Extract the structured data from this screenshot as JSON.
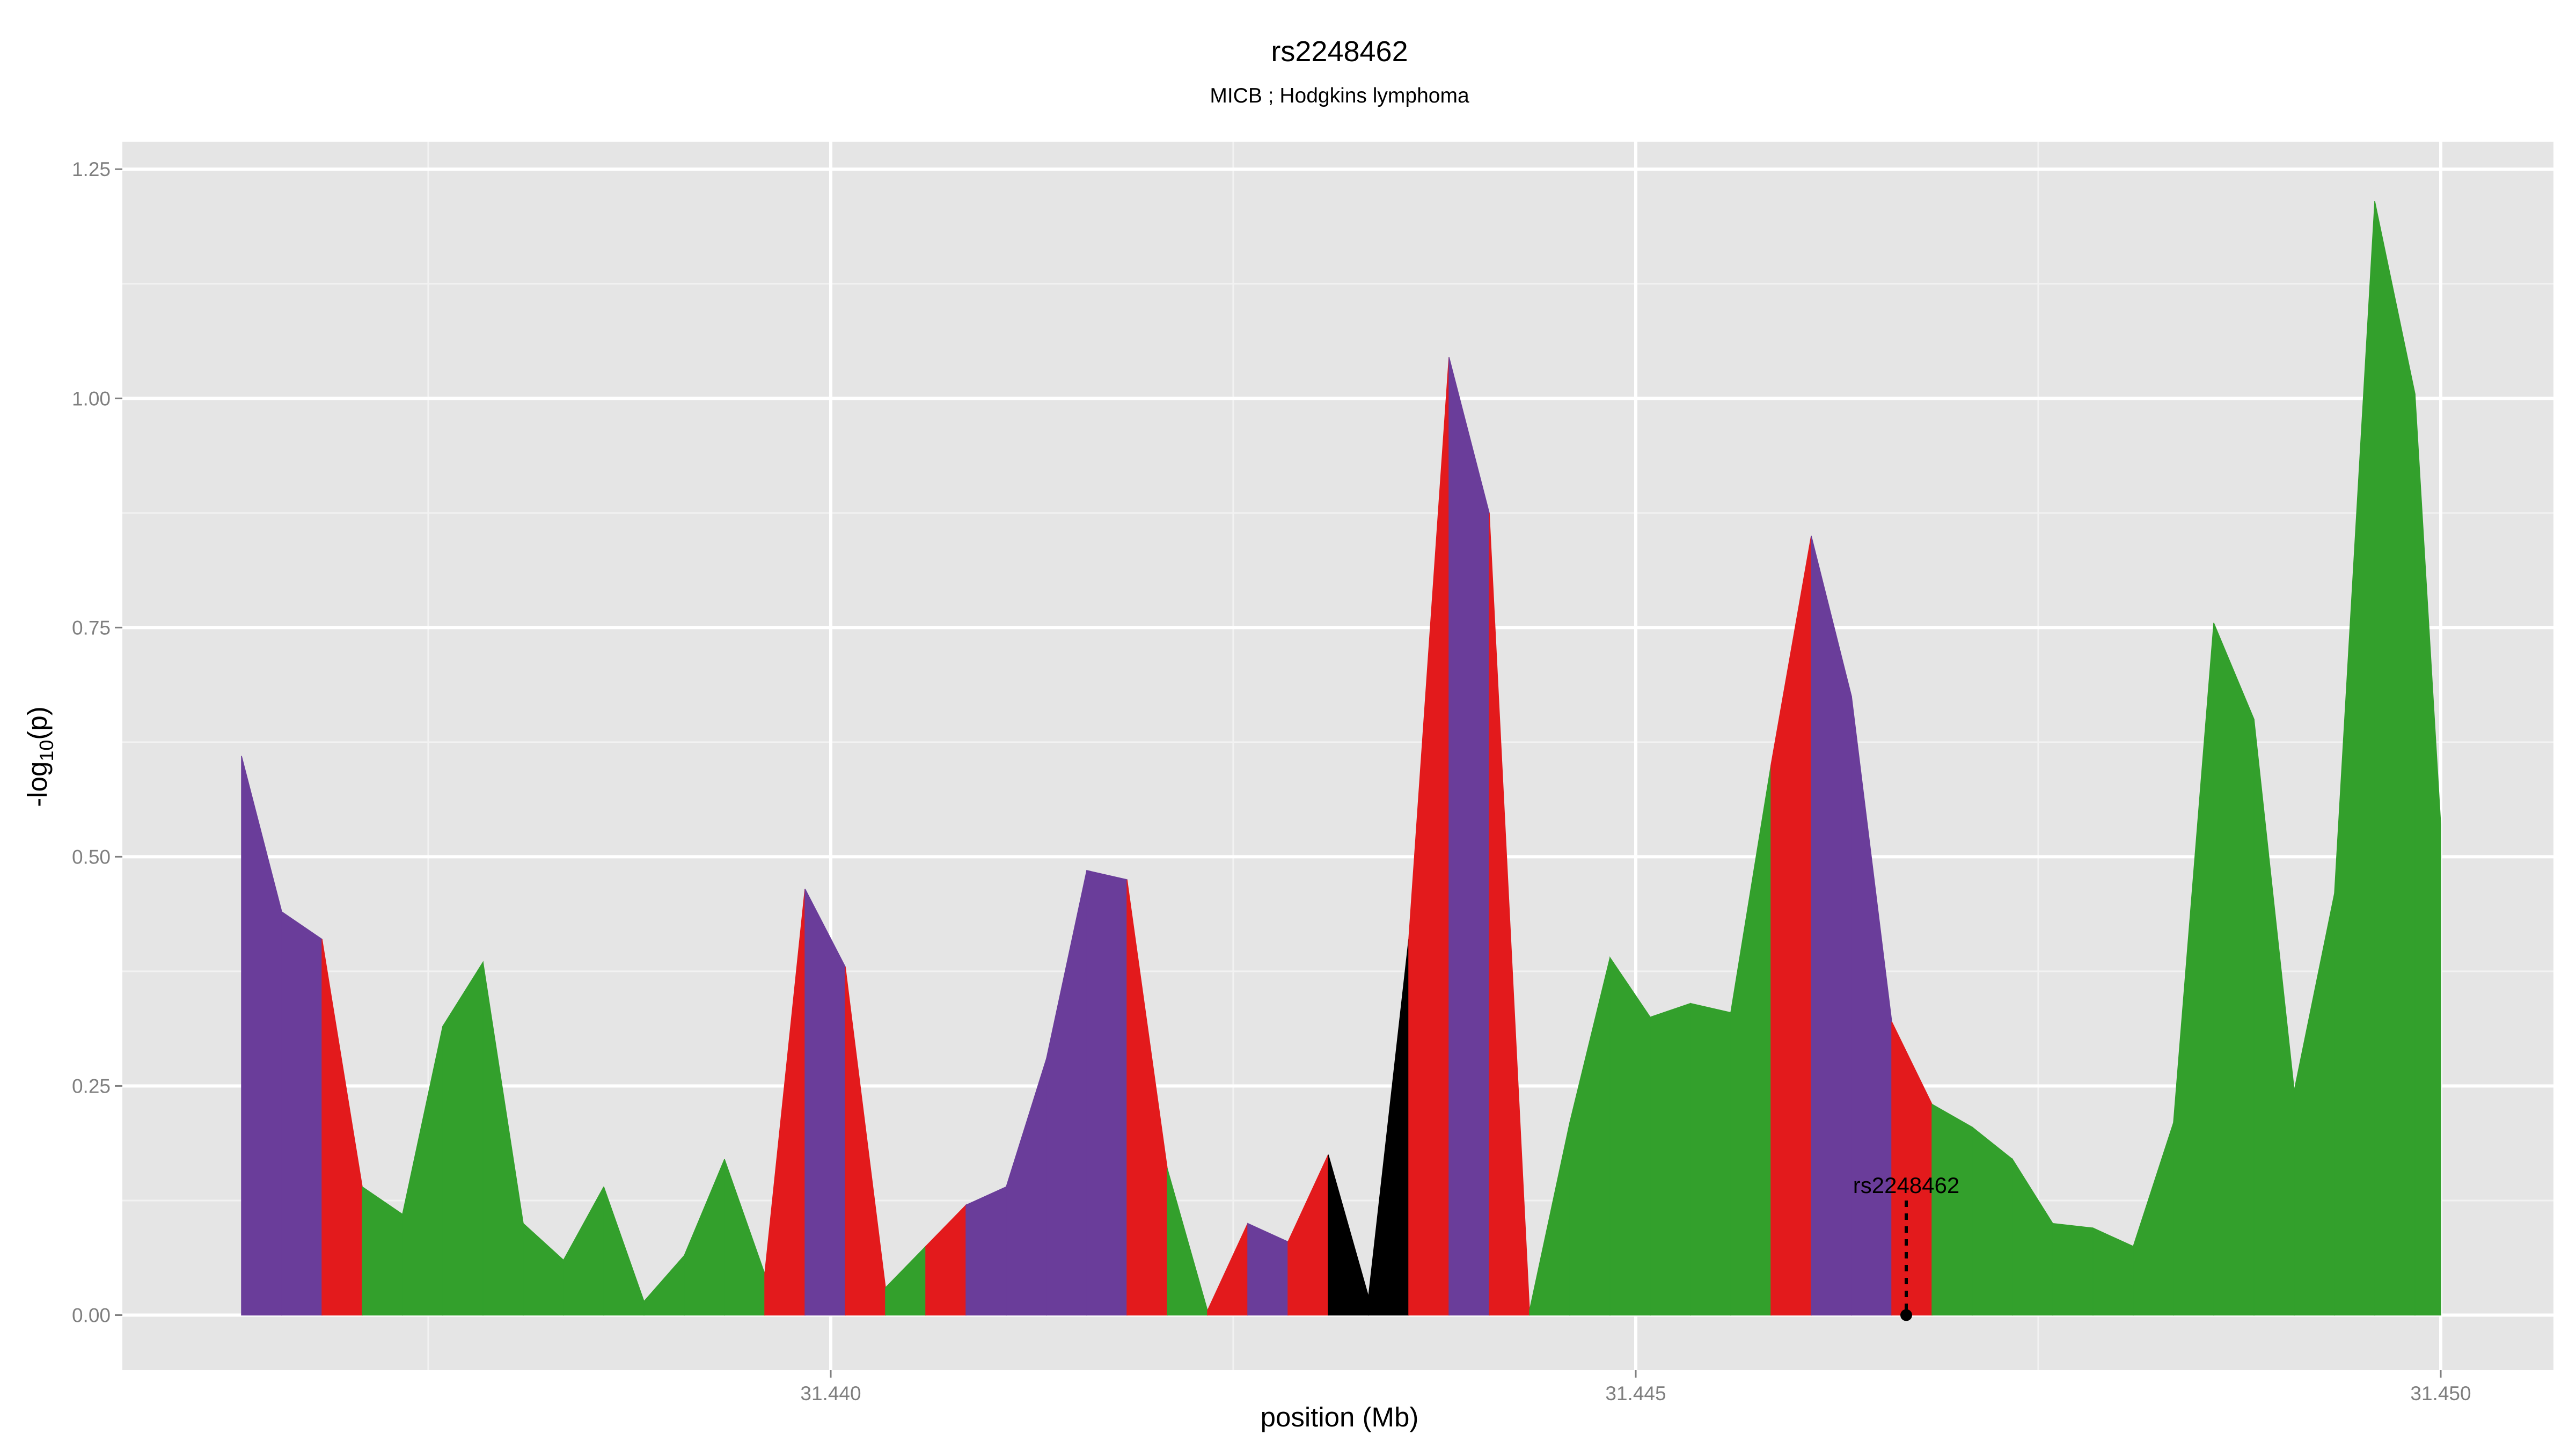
{
  "chart_data": {
    "type": "area",
    "title": "rs2248462",
    "subtitle": "MICB ; Hodgkins lymphoma",
    "xlabel": "position (Mb)",
    "ylabel_prefix": "-log",
    "ylabel_sub": "10",
    "ylabel_suffix": "(p)",
    "xlim": [
      31.4356,
      31.4507
    ],
    "ylim": [
      -0.06,
      1.28
    ],
    "x_ticks": [
      31.44,
      31.445,
      31.45
    ],
    "x_tick_labels": [
      "31.440",
      "31.445",
      "31.450"
    ],
    "y_ticks": [
      0,
      0.25,
      0.5,
      0.75,
      1.0,
      1.25
    ],
    "y_tick_labels": [
      "0.00",
      "0.25",
      "0.50",
      "0.75",
      "1.00",
      "1.25"
    ],
    "grid": true,
    "colors": {
      "purple": "#6A3D9A",
      "red": "#E31A1C",
      "green": "#33A02C",
      "black": "#000000"
    },
    "x": [
      31.43634,
      31.43659,
      31.43684,
      31.43709,
      31.43734,
      31.43759,
      31.43784,
      31.43809,
      31.43834,
      31.43859,
      31.43884,
      31.43909,
      31.43934,
      31.43959,
      31.43984,
      31.44009,
      31.44034,
      31.44059,
      31.44084,
      31.44109,
      31.44134,
      31.44159,
      31.44184,
      31.44209,
      31.44234,
      31.44259,
      31.44284,
      31.44309,
      31.44334,
      31.44359,
      31.44384,
      31.44409,
      31.44434,
      31.44459,
      31.44484,
      31.44509,
      31.44534,
      31.44559,
      31.44584,
      31.44609,
      31.44634,
      31.44659,
      31.44684,
      31.44709,
      31.44734,
      31.44759,
      31.44784,
      31.44809,
      31.44834,
      31.44859,
      31.44884,
      31.44909,
      31.44934,
      31.44959,
      31.44984
    ],
    "y": [
      0.61,
      0.44,
      0.41,
      0.14,
      0.11,
      0.315,
      0.385,
      0.1,
      0.06,
      0.14,
      0.015,
      0.065,
      0.17,
      0.045,
      0.465,
      0.38,
      0.03,
      0.075,
      0.12,
      0.14,
      0.28,
      0.485,
      0.475,
      0.16,
      0.005,
      0.1,
      0.08,
      0.175,
      0.02,
      0.41,
      1.045,
      0.875,
      0.005,
      0.21,
      0.39,
      0.325,
      0.34,
      0.33,
      0.6,
      0.85,
      0.675,
      0.32,
      0.23,
      0.205,
      0.17,
      0.1,
      0.095,
      0.075,
      0.21,
      0.755,
      0.65,
      0.245,
      0.46,
      1.215,
      1.005
    ],
    "x_end": 31.45,
    "y_end": 0.535,
    "segment_colors": [
      "purple",
      "purple",
      "red",
      "green",
      "green",
      "green",
      "green",
      "green",
      "green",
      "green",
      "green",
      "green",
      "green",
      "red",
      "purple",
      "red",
      "green",
      "red",
      "purple",
      "purple",
      "purple",
      "purple",
      "red",
      "green",
      "red",
      "purple",
      "red",
      "black",
      "black",
      "red",
      "purple",
      "red",
      "green",
      "green",
      "green",
      "green",
      "green",
      "green",
      "red",
      "purple",
      "purple",
      "red",
      "green",
      "green",
      "green",
      "green",
      "green",
      "green",
      "green",
      "green",
      "green",
      "green",
      "green",
      "green",
      "green"
    ],
    "annotation": {
      "label": "rs2248462",
      "x": 31.44668,
      "y_label": 0.125
    }
  }
}
